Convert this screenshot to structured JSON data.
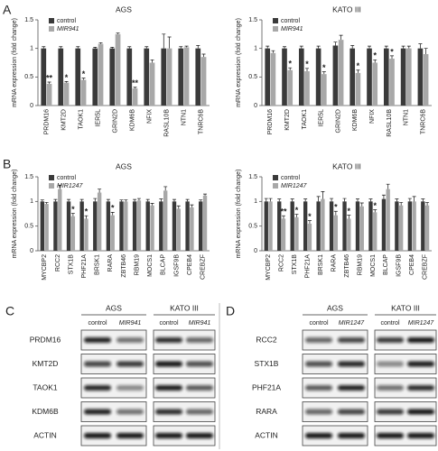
{
  "panel_labels": [
    "A",
    "B",
    "C",
    "D"
  ],
  "chart_data": [
    {
      "type": "bar",
      "title": "AGS",
      "y_label": "mRNA expression (fold change)",
      "categories": [
        "PRDM16",
        "KMT2D",
        "TAOK1",
        "IER5L",
        "GRIN2D",
        "KDM6B",
        "NFIX",
        "RASL10B",
        "NTN1",
        "TNRC6B"
      ],
      "series": [
        {
          "name": "control",
          "color": "#3a3a3a",
          "values": [
            1,
            1,
            1,
            1,
            1,
            1,
            1,
            1,
            1,
            1
          ],
          "errors": [
            0.03,
            0.03,
            0.03,
            0.02,
            0.02,
            0.03,
            0.03,
            0.25,
            0.03,
            0.05
          ]
        },
        {
          "name": "MIR941",
          "color": "#a8a8a8",
          "values": [
            0.38,
            0.4,
            0.45,
            1.08,
            1.25,
            0.3,
            0.75,
            1.0,
            1.02,
            0.85
          ],
          "errors": [
            0.03,
            0.02,
            0.03,
            0.02,
            0.02,
            0.02,
            0.05,
            0.2,
            0.02,
            0.05
          ]
        }
      ],
      "significance": [
        "**",
        "*",
        "*",
        null,
        null,
        "**",
        null,
        null,
        null,
        null
      ],
      "ylim": [
        0,
        1.5
      ],
      "yticks": [
        0,
        0.5,
        1,
        1.5
      ]
    },
    {
      "type": "bar",
      "title": "KATO III",
      "y_label": "mRNA expression (fold change)",
      "categories": [
        "PRDM16",
        "KMT2D",
        "TAOK1",
        "IER5L",
        "GRIN2D",
        "KDM6B",
        "NFIX",
        "RASL10B",
        "NTN1",
        "TNRC6B"
      ],
      "series": [
        {
          "name": "control",
          "color": "#3a3a3a",
          "values": [
            1,
            1,
            1,
            1,
            1.05,
            1,
            1,
            1,
            1,
            1
          ],
          "errors": [
            0.04,
            0.03,
            0.04,
            0.04,
            0.06,
            0.05,
            0.04,
            0.04,
            0.04,
            0.08
          ]
        },
        {
          "name": "MIR941",
          "color": "#a8a8a8",
          "values": [
            0.92,
            0.62,
            0.6,
            0.55,
            1.15,
            0.57,
            0.75,
            0.82,
            1.0,
            0.9
          ],
          "errors": [
            0.04,
            0.04,
            0.05,
            0.04,
            0.08,
            0.05,
            0.05,
            0.05,
            0.04,
            0.1
          ]
        }
      ],
      "significance": [
        null,
        "*",
        "*",
        "*",
        null,
        "*",
        "*",
        "*",
        null,
        null
      ],
      "ylim": [
        0,
        1.5
      ],
      "yticks": [
        0,
        0.5,
        1,
        1.5
      ]
    },
    {
      "type": "bar",
      "title": "AGS",
      "y_label": "mRNA expression (fold change)",
      "categories": [
        "MYCBP2",
        "RCC2",
        "STX1B",
        "PHF21A",
        "BRSK1",
        "RARA",
        "ZBTB46",
        "RBM19",
        "MOCS1",
        "BLCAP",
        "IGSF9B",
        "CPEB4",
        "CREBZF"
      ],
      "series": [
        {
          "name": "control",
          "color": "#3a3a3a",
          "values": [
            1,
            1,
            1,
            1,
            1,
            1,
            1,
            1,
            1,
            1,
            1,
            1,
            1
          ],
          "errors": [
            0.03,
            0.04,
            0.04,
            0.04,
            0.06,
            0.04,
            0.03,
            0.04,
            0.04,
            0.05,
            0.04,
            0.04,
            0.03
          ]
        },
        {
          "name": "MIR1247",
          "color": "#a8a8a8",
          "values": [
            0.95,
            1.25,
            0.7,
            0.65,
            1.18,
            0.72,
            1.0,
            1.02,
            0.92,
            1.22,
            0.85,
            0.88,
            1.12
          ],
          "errors": [
            0.03,
            0.08,
            0.06,
            0.06,
            0.07,
            0.06,
            0.03,
            0.04,
            0.04,
            0.08,
            0.06,
            0.05,
            0.03
          ]
        }
      ],
      "significance": [
        null,
        null,
        "*",
        "*",
        null,
        "*",
        null,
        null,
        null,
        null,
        null,
        null,
        null
      ],
      "ylim": [
        0,
        1.5
      ],
      "yticks": [
        0,
        0.5,
        1,
        1.5
      ]
    },
    {
      "type": "bar",
      "title": "KATO III",
      "y_label": "mRNA expression (fold change)",
      "categories": [
        "MYCBP2",
        "RCC2",
        "STX1B",
        "PHF21A",
        "BRSK1",
        "RARA",
        "ZBTB46",
        "RBM19",
        "MOCS1",
        "BLCAP",
        "IGSF9B",
        "CPEB4",
        "CREBZF"
      ],
      "series": [
        {
          "name": "control",
          "color": "#3a3a3a",
          "values": [
            1,
            1,
            1,
            1,
            1,
            1,
            1,
            1,
            1,
            1.05,
            1,
            1,
            1
          ],
          "errors": [
            0.06,
            0.05,
            0.05,
            0.05,
            0.1,
            0.06,
            0.06,
            0.05,
            0.05,
            0.08,
            0.05,
            0.06,
            0.05
          ]
        },
        {
          "name": "MIR1247",
          "color": "#a8a8a8",
          "values": [
            1.0,
            0.65,
            0.68,
            0.55,
            1.05,
            0.72,
            0.65,
            0.9,
            0.78,
            1.25,
            0.92,
            1.0,
            0.92
          ],
          "errors": [
            0.06,
            0.06,
            0.06,
            0.06,
            0.15,
            0.08,
            0.07,
            0.07,
            0.05,
            0.1,
            0.06,
            0.1,
            0.06
          ]
        }
      ],
      "significance": [
        null,
        "**",
        "*",
        "*",
        null,
        "*",
        "*",
        null,
        "*",
        null,
        null,
        null,
        null
      ],
      "ylim": [
        0,
        1.5
      ],
      "yticks": [
        0,
        0.5,
        1,
        1.5
      ]
    }
  ],
  "blots": [
    {
      "groups": [
        "AGS",
        "KATO III"
      ],
      "lanes": [
        "control",
        "MIR941",
        "control",
        "MIR941"
      ],
      "rows": [
        "PRDM16",
        "KMT2D",
        "TAOK1",
        "KDM6B",
        "ACTIN"
      ]
    },
    {
      "groups": [
        "AGS",
        "KATO III"
      ],
      "lanes": [
        "control",
        "MIR1247",
        "control",
        "MIR1247"
      ],
      "rows": [
        "RCC2",
        "STX1B",
        "PHF21A",
        "RARA",
        "ACTIN"
      ]
    }
  ]
}
